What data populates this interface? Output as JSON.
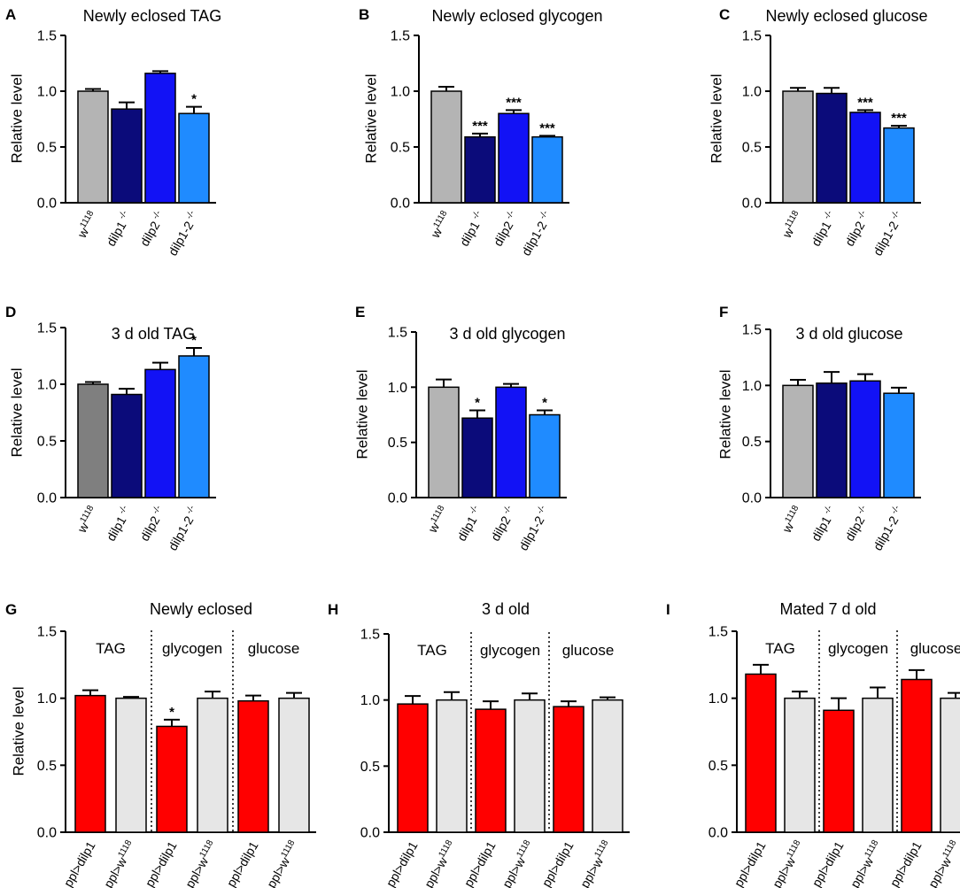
{
  "colors": {
    "w1118": "#b4b4b4",
    "w1118_dark": "#7f7f7f",
    "dilp1": "#0b0b7a",
    "dilp2": "#1212f5",
    "dilp1_2": "#1f8bff",
    "ppl_dilp1": "#ff0000",
    "ppl_w1118": "#e6e6e6",
    "axis": "#000000"
  },
  "chart_data": [
    {
      "panel": "A",
      "type": "bar",
      "title": "Newly eclosed TAG",
      "ylabel": "Relative level",
      "ylim": [
        0,
        1.5
      ],
      "yticks": [
        "0.0",
        "0.5",
        "1.0",
        "1.5"
      ],
      "categories": [
        {
          "base": "w",
          "sup": "1118",
          "color": "w1118"
        },
        {
          "base": "dilp1",
          "sup": " -/-",
          "color": "dilp1"
        },
        {
          "base": "dilp2",
          "sup": " -/-",
          "color": "dilp2"
        },
        {
          "base": "dilp1-2",
          "sup": " -/-",
          "color": "dilp1_2"
        }
      ],
      "values": [
        1.0,
        0.84,
        1.16,
        0.8
      ],
      "errors": [
        0.02,
        0.06,
        0.02,
        0.06
      ],
      "significance": [
        "",
        "",
        "",
        "*"
      ]
    },
    {
      "panel": "B",
      "type": "bar",
      "title": "Newly eclosed glycogen",
      "ylabel": "Relative level",
      "ylim": [
        0,
        1.5
      ],
      "yticks": [
        "0.0",
        "0.5",
        "1.0",
        "1.5"
      ],
      "categories": [
        {
          "base": "w",
          "sup": "1118",
          "color": "w1118"
        },
        {
          "base": "dilp1",
          "sup": " -/-",
          "color": "dilp1"
        },
        {
          "base": "dilp2",
          "sup": " -/-",
          "color": "dilp2"
        },
        {
          "base": "dilp1-2",
          "sup": " -/-",
          "color": "dilp1_2"
        }
      ],
      "values": [
        1.0,
        0.59,
        0.8,
        0.59
      ],
      "errors": [
        0.04,
        0.03,
        0.03,
        0.01
      ],
      "significance": [
        "",
        "***",
        "***",
        "***"
      ]
    },
    {
      "panel": "C",
      "type": "bar",
      "title": "Newly eclosed glucose",
      "ylabel": "Relative level",
      "ylim": [
        0,
        1.5
      ],
      "yticks": [
        "0.0",
        "0.5",
        "1.0",
        "1.5"
      ],
      "categories": [
        {
          "base": "w",
          "sup": "1118",
          "color": "w1118"
        },
        {
          "base": "dilp1",
          "sup": " -/-",
          "color": "dilp1"
        },
        {
          "base": "dilp2",
          "sup": " -/-",
          "color": "dilp2"
        },
        {
          "base": "dilp1-2",
          "sup": " -/-",
          "color": "dilp1_2"
        }
      ],
      "values": [
        1.0,
        0.98,
        0.81,
        0.67
      ],
      "errors": [
        0.03,
        0.05,
        0.02,
        0.02
      ],
      "significance": [
        "",
        "",
        "***",
        "***"
      ]
    },
    {
      "panel": "D",
      "type": "bar",
      "title": "3 d old TAG",
      "ylabel": "Relative level",
      "ylim": [
        0,
        1.5
      ],
      "yticks": [
        "0.0",
        "0.5",
        "1.0",
        "1.5"
      ],
      "categories": [
        {
          "base": "w",
          "sup": "1118",
          "color": "w1118_dark"
        },
        {
          "base": "dilp1",
          "sup": " -/-",
          "color": "dilp1"
        },
        {
          "base": "dilp2",
          "sup": " -/-",
          "color": "dilp2"
        },
        {
          "base": "dilp1-2",
          "sup": " -/-",
          "color": "dilp1_2"
        }
      ],
      "values": [
        1.0,
        0.91,
        1.13,
        1.25
      ],
      "errors": [
        0.02,
        0.05,
        0.06,
        0.07
      ],
      "significance": [
        "",
        "",
        "",
        "*"
      ]
    },
    {
      "panel": "E",
      "type": "bar",
      "title": "3 d old glycogen",
      "ylabel": "Relative level",
      "ylim": [
        0,
        1.5
      ],
      "yticks": [
        "0.0",
        "0.5",
        "1.0",
        "1.5"
      ],
      "categories": [
        {
          "base": "w",
          "sup": "1118",
          "color": "w1118"
        },
        {
          "base": "dilp1",
          "sup": " -/-",
          "color": "dilp1"
        },
        {
          "base": "dilp2",
          "sup": " -/-",
          "color": "dilp2"
        },
        {
          "base": "dilp1-2",
          "sup": " -/-",
          "color": "dilp1_2"
        }
      ],
      "values": [
        1.0,
        0.72,
        1.0,
        0.75
      ],
      "errors": [
        0.07,
        0.07,
        0.03,
        0.04
      ],
      "significance": [
        "",
        "*",
        "",
        "*"
      ]
    },
    {
      "panel": "F",
      "type": "bar",
      "title": "3 d old glucose",
      "ylabel": "Relative level",
      "ylim": [
        0,
        1.5
      ],
      "yticks": [
        "0.0",
        "0.5",
        "1.0",
        "1.5"
      ],
      "categories": [
        {
          "base": "w",
          "sup": "1118",
          "color": "w1118"
        },
        {
          "base": "dilp1",
          "sup": " -/-",
          "color": "dilp1"
        },
        {
          "base": "dilp2",
          "sup": " -/-",
          "color": "dilp2"
        },
        {
          "base": "dilp1-2",
          "sup": " -/-",
          "color": "dilp1_2"
        }
      ],
      "values": [
        1.0,
        1.02,
        1.04,
        0.93
      ],
      "errors": [
        0.05,
        0.1,
        0.06,
        0.05
      ],
      "significance": [
        "",
        "",
        "",
        ""
      ]
    },
    {
      "panel": "G",
      "type": "bar",
      "title": "Newly eclosed",
      "ylabel": "Relative level",
      "ylim": [
        0,
        1.5
      ],
      "yticks": [
        "0.0",
        "0.5",
        "1.0",
        "1.5"
      ],
      "groups": [
        "TAG",
        "glycogen",
        "glucose"
      ],
      "categories": [
        {
          "base": "ppl>dilp1",
          "sup": "",
          "color": "ppl_dilp1"
        },
        {
          "base": "ppl>w",
          "sup": "1118",
          "color": "ppl_w1118"
        },
        {
          "base": "ppl>dilp1",
          "sup": "",
          "color": "ppl_dilp1"
        },
        {
          "base": "ppl>w",
          "sup": "1118",
          "color": "ppl_w1118"
        },
        {
          "base": "ppl>dilp1",
          "sup": "",
          "color": "ppl_dilp1"
        },
        {
          "base": "ppl>w",
          "sup": "1118",
          "color": "ppl_w1118"
        }
      ],
      "values": [
        1.02,
        1.0,
        0.79,
        1.0,
        0.98,
        1.0
      ],
      "errors": [
        0.04,
        0.01,
        0.05,
        0.05,
        0.04,
        0.04
      ],
      "significance": [
        "",
        "",
        "*",
        "",
        "",
        ""
      ]
    },
    {
      "panel": "H",
      "type": "bar",
      "title": "3 d old",
      "ylabel": "",
      "ylim": [
        0,
        1.5
      ],
      "yticks": [
        "0.0",
        "0.5",
        "1.0",
        "1.5"
      ],
      "groups": [
        "TAG",
        "glycogen",
        "glucose"
      ],
      "categories": [
        {
          "base": "ppl>dilp1",
          "sup": "",
          "color": "ppl_dilp1"
        },
        {
          "base": "ppl>w",
          "sup": "1118",
          "color": "ppl_w1118"
        },
        {
          "base": "ppl>dilp1",
          "sup": "",
          "color": "ppl_dilp1"
        },
        {
          "base": "ppl>w",
          "sup": "1118",
          "color": "ppl_w1118"
        },
        {
          "base": "ppl>dilp1",
          "sup": "",
          "color": "ppl_dilp1"
        },
        {
          "base": "ppl>w",
          "sup": "1118",
          "color": "ppl_w1118"
        }
      ],
      "values": [
        0.97,
        1.0,
        0.93,
        1.0,
        0.95,
        1.0
      ],
      "errors": [
        0.06,
        0.06,
        0.06,
        0.05,
        0.04,
        0.02
      ],
      "significance": [
        "",
        "",
        "",
        "",
        "",
        ""
      ]
    },
    {
      "panel": "I",
      "type": "bar",
      "title": "Mated 7 d old",
      "ylabel": "",
      "ylim": [
        0,
        1.5
      ],
      "yticks": [
        "0.0",
        "0.5",
        "1.0",
        "1.5"
      ],
      "groups": [
        "TAG",
        "glycogen",
        "glucose"
      ],
      "categories": [
        {
          "base": "ppl>dilp1",
          "sup": "",
          "color": "ppl_dilp1"
        },
        {
          "base": "ppl>w",
          "sup": "1118",
          "color": "ppl_w1118"
        },
        {
          "base": "ppl>dilp1",
          "sup": "",
          "color": "ppl_dilp1"
        },
        {
          "base": "ppl>w",
          "sup": "1118",
          "color": "ppl_w1118"
        },
        {
          "base": "ppl>dilp1",
          "sup": "",
          "color": "ppl_dilp1"
        },
        {
          "base": "ppl>w",
          "sup": "1118",
          "color": "ppl_w1118"
        }
      ],
      "values": [
        1.18,
        1.0,
        0.91,
        1.0,
        1.14,
        1.0
      ],
      "errors": [
        0.07,
        0.05,
        0.09,
        0.08,
        0.07,
        0.04
      ],
      "significance": [
        "",
        "",
        "",
        "",
        "",
        ""
      ]
    }
  ]
}
